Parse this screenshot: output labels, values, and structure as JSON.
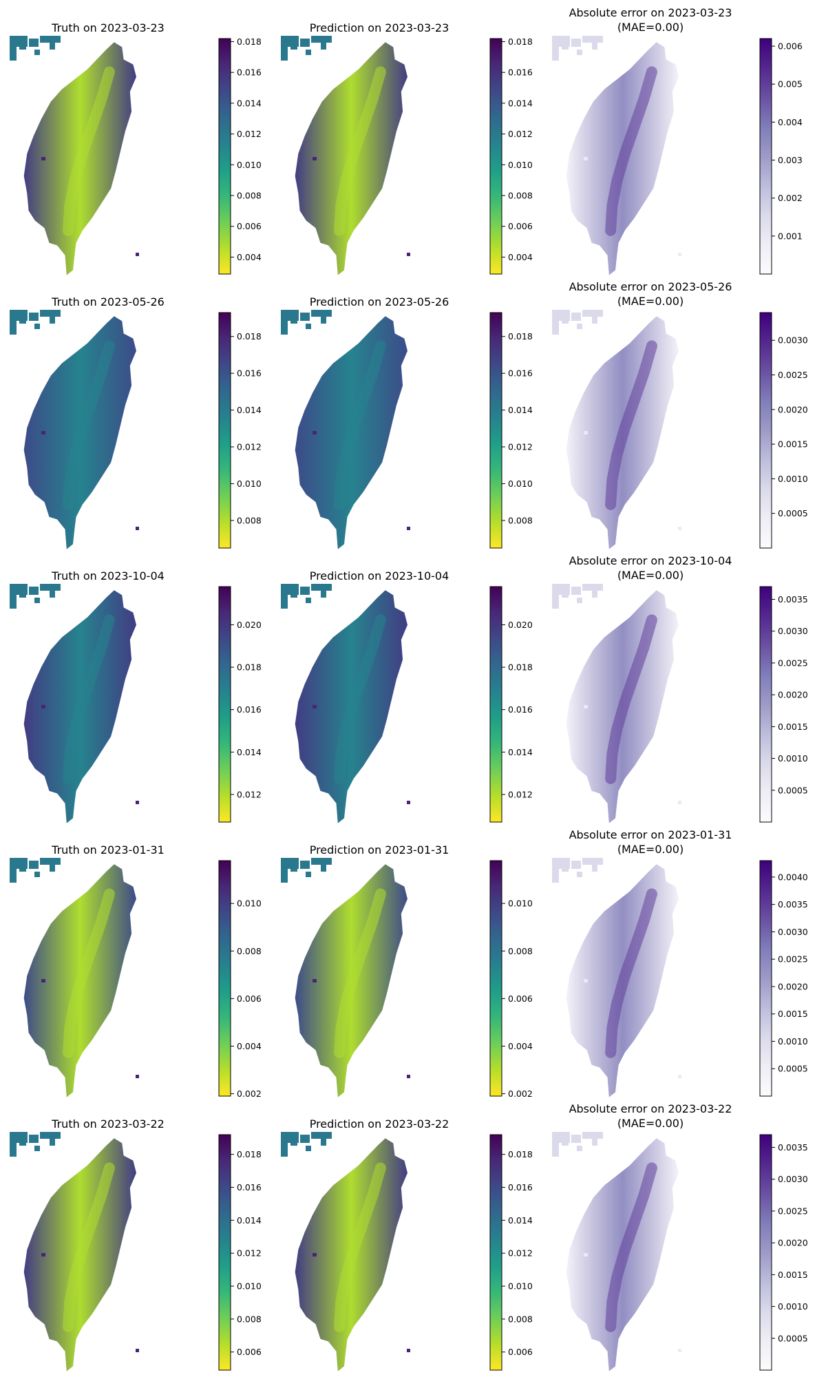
{
  "figure": {
    "colors": {
      "viridis_reversed": [
        "#fde725",
        "#b5de2b",
        "#6ece58",
        "#35b779",
        "#1f9e89",
        "#26828e",
        "#31688e",
        "#3e4989",
        "#482878",
        "#440154"
      ],
      "purples": [
        "#fcfbfd",
        "#efedf5",
        "#dadaeb",
        "#bcbddc",
        "#9e9ac8",
        "#807dba",
        "#6a51a3",
        "#54278f",
        "#3f007d"
      ]
    }
  },
  "chart_data": [
    {
      "type": "heatmap",
      "row": 0,
      "kind": "truth",
      "colormap": "viridis_reversed",
      "title": "Truth on 2023-03-23",
      "colorbar": {
        "vmin": 0.0029,
        "vmax": 0.0182,
        "ticks": [
          "0.004",
          "0.006",
          "0.008",
          "0.010",
          "0.012",
          "0.014",
          "0.016",
          "0.018"
        ]
      }
    },
    {
      "type": "heatmap",
      "row": 0,
      "kind": "prediction",
      "colormap": "viridis_reversed",
      "title": "Prediction on 2023-03-23",
      "colorbar": {
        "vmin": 0.0029,
        "vmax": 0.0182,
        "ticks": [
          "0.004",
          "0.006",
          "0.008",
          "0.010",
          "0.012",
          "0.014",
          "0.016",
          "0.018"
        ]
      }
    },
    {
      "type": "heatmap",
      "row": 0,
      "kind": "error",
      "colormap": "purples",
      "title": "Absolute error on 2023-03-23",
      "subtitle": "(MAE=0.00)",
      "colorbar": {
        "vmin": 0.0,
        "vmax": 0.0062,
        "ticks": [
          "0.001",
          "0.002",
          "0.003",
          "0.004",
          "0.005",
          "0.006"
        ]
      }
    },
    {
      "type": "heatmap",
      "row": 1,
      "kind": "truth",
      "colormap": "viridis_reversed",
      "title": "Truth on 2023-05-26",
      "colorbar": {
        "vmin": 0.0065,
        "vmax": 0.0193,
        "ticks": [
          "0.008",
          "0.010",
          "0.012",
          "0.014",
          "0.016",
          "0.018"
        ]
      }
    },
    {
      "type": "heatmap",
      "row": 1,
      "kind": "prediction",
      "colormap": "viridis_reversed",
      "title": "Prediction on 2023-05-26",
      "colorbar": {
        "vmin": 0.0065,
        "vmax": 0.0193,
        "ticks": [
          "0.008",
          "0.010",
          "0.012",
          "0.014",
          "0.016",
          "0.018"
        ]
      }
    },
    {
      "type": "heatmap",
      "row": 1,
      "kind": "error",
      "colormap": "purples",
      "title": "Absolute error on 2023-05-26",
      "subtitle": "(MAE=0.00)",
      "colorbar": {
        "vmin": 0.0,
        "vmax": 0.0034,
        "ticks": [
          "0.0005",
          "0.0010",
          "0.0015",
          "0.0020",
          "0.0025",
          "0.0030"
        ]
      }
    },
    {
      "type": "heatmap",
      "row": 2,
      "kind": "truth",
      "colormap": "viridis_reversed",
      "title": "Truth on 2023-10-04",
      "colorbar": {
        "vmin": 0.0107,
        "vmax": 0.0218,
        "ticks": [
          "0.012",
          "0.014",
          "0.016",
          "0.018",
          "0.020"
        ]
      }
    },
    {
      "type": "heatmap",
      "row": 2,
      "kind": "prediction",
      "colormap": "viridis_reversed",
      "title": "Prediction on 2023-10-04",
      "colorbar": {
        "vmin": 0.0107,
        "vmax": 0.0218,
        "ticks": [
          "0.012",
          "0.014",
          "0.016",
          "0.018",
          "0.020"
        ]
      }
    },
    {
      "type": "heatmap",
      "row": 2,
      "kind": "error",
      "colormap": "purples",
      "title": "Absolute error on 2023-10-04",
      "subtitle": "(MAE=0.00)",
      "colorbar": {
        "vmin": 0.0,
        "vmax": 0.0037,
        "ticks": [
          "0.0005",
          "0.0010",
          "0.0015",
          "0.0020",
          "0.0025",
          "0.0030",
          "0.0035"
        ]
      }
    },
    {
      "type": "heatmap",
      "row": 3,
      "kind": "truth",
      "colormap": "viridis_reversed",
      "title": "Truth on 2023-01-31",
      "colorbar": {
        "vmin": 0.0019,
        "vmax": 0.0118,
        "ticks": [
          "0.002",
          "0.004",
          "0.006",
          "0.008",
          "0.010"
        ]
      }
    },
    {
      "type": "heatmap",
      "row": 3,
      "kind": "prediction",
      "colormap": "viridis_reversed",
      "title": "Prediction on 2023-01-31",
      "colorbar": {
        "vmin": 0.0019,
        "vmax": 0.0118,
        "ticks": [
          "0.002",
          "0.004",
          "0.006",
          "0.008",
          "0.010"
        ]
      }
    },
    {
      "type": "heatmap",
      "row": 3,
      "kind": "error",
      "colormap": "purples",
      "title": "Absolute error on 2023-01-31",
      "subtitle": "(MAE=0.00)",
      "colorbar": {
        "vmin": 0.0,
        "vmax": 0.0043,
        "ticks": [
          "0.0005",
          "0.0010",
          "0.0015",
          "0.0020",
          "0.0025",
          "0.0030",
          "0.0035",
          "0.0040"
        ]
      }
    },
    {
      "type": "heatmap",
      "row": 4,
      "kind": "truth",
      "colormap": "viridis_reversed",
      "title": "Truth on 2023-03-22",
      "colorbar": {
        "vmin": 0.0049,
        "vmax": 0.0192,
        "ticks": [
          "0.006",
          "0.008",
          "0.010",
          "0.012",
          "0.014",
          "0.016",
          "0.018"
        ]
      }
    },
    {
      "type": "heatmap",
      "row": 4,
      "kind": "prediction",
      "colormap": "viridis_reversed",
      "title": "Prediction on 2023-03-22",
      "colorbar": {
        "vmin": 0.0049,
        "vmax": 0.0192,
        "ticks": [
          "0.006",
          "0.008",
          "0.010",
          "0.012",
          "0.014",
          "0.016",
          "0.018"
        ]
      }
    },
    {
      "type": "heatmap",
      "row": 4,
      "kind": "error",
      "colormap": "purples",
      "title": "Absolute error on 2023-03-22",
      "subtitle": "(MAE=0.00)",
      "colorbar": {
        "vmin": 0.0,
        "vmax": 0.0037,
        "ticks": [
          "0.0005",
          "0.0010",
          "0.0015",
          "0.0020",
          "0.0025",
          "0.0030",
          "0.0035"
        ]
      }
    }
  ]
}
